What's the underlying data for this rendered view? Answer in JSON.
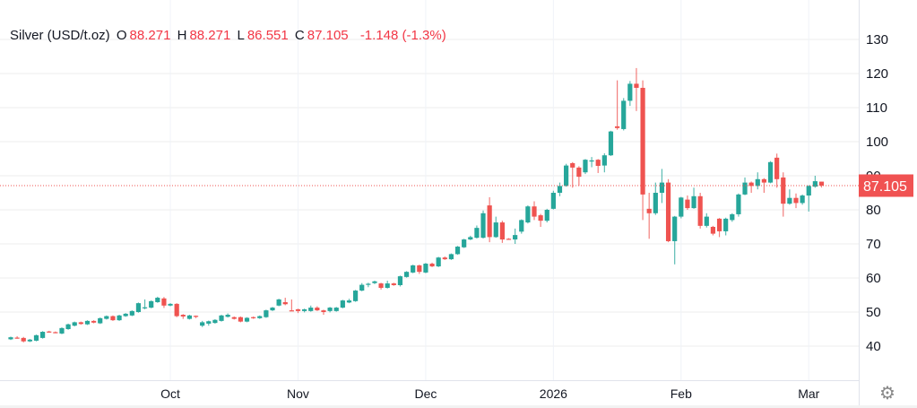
{
  "legend": {
    "symbol": "Silver (USD/t.oz)",
    "o_label": "O",
    "o": "88.271",
    "h_label": "H",
    "h": "88.271",
    "l_label": "L",
    "l": "86.551",
    "c_label": "C",
    "c": "87.105",
    "change": "-1.148 (-1.3%)"
  },
  "colors": {
    "up": "#26a69a",
    "down": "#ef5350",
    "grid": "#f0f0f3",
    "axis_text": "#131722",
    "last_price_bg": "#f05252"
  },
  "settings_icon": "gear-icon",
  "chart_data": {
    "type": "candlestick",
    "title": "Silver (USD/t.oz)",
    "xlabel": "",
    "ylabel": "",
    "ylim": [
      30,
      140
    ],
    "yticks": [
      40,
      50,
      60,
      70,
      80,
      90,
      100,
      110,
      120,
      130
    ],
    "xticks": [
      {
        "index": 25,
        "label": "Oct"
      },
      {
        "index": 45,
        "label": "Nov"
      },
      {
        "index": 65,
        "label": "Dec"
      },
      {
        "index": 85,
        "label": "2026"
      },
      {
        "index": 105,
        "label": "Feb"
      },
      {
        "index": 125,
        "label": "Mar"
      }
    ],
    "last_price": "87.105",
    "grid": true,
    "ohlc": [
      [
        42,
        42.8,
        41.8,
        42.6
      ],
      [
        42.5,
        42.9,
        42.2,
        42.4
      ],
      [
        42.4,
        42.7,
        41.1,
        41.4
      ],
      [
        41.4,
        42.1,
        41.2,
        41.9
      ],
      [
        41.6,
        43.4,
        41.4,
        43.2
      ],
      [
        42.4,
        44.4,
        42.2,
        44.2
      ],
      [
        44.3,
        44.5,
        44.0,
        44.2
      ],
      [
        44.1,
        44.3,
        43.8,
        44.0
      ],
      [
        43.7,
        45.5,
        43.5,
        45.3
      ],
      [
        45.0,
        46.6,
        44.8,
        46.4
      ],
      [
        46.0,
        47.2,
        45.8,
        47.0
      ],
      [
        47.0,
        47.2,
        46.3,
        46.5
      ],
      [
        46.4,
        47.6,
        46.2,
        47.4
      ],
      [
        47.4,
        47.6,
        46.7,
        46.9
      ],
      [
        46.7,
        48.4,
        46.5,
        48.2
      ],
      [
        48.0,
        49.0,
        47.8,
        48.8
      ],
      [
        48.8,
        49.0,
        47.4,
        47.6
      ],
      [
        47.6,
        49.2,
        47.4,
        49.0
      ],
      [
        48.8,
        49.7,
        48.6,
        49.5
      ],
      [
        49.0,
        50.5,
        48.8,
        50.3
      ],
      [
        50.0,
        52.8,
        49.8,
        52.6
      ],
      [
        51.3,
        53.7,
        50.8,
        51.4
      ],
      [
        51.3,
        53.4,
        51.1,
        53.2
      ],
      [
        52.9,
        54.5,
        52.7,
        54.2
      ],
      [
        54.0,
        54.4,
        51.2,
        51.9
      ],
      [
        51.9,
        52.6,
        51.7,
        52.4
      ],
      [
        52.4,
        52.6,
        48.5,
        48.8
      ],
      [
        49.2,
        49.4,
        48.0,
        48.7
      ],
      [
        48.0,
        49.2,
        47.8,
        49.0
      ],
      [
        48.9,
        49.0,
        48.2,
        48.7
      ],
      [
        46.0,
        47.4,
        45.6,
        47.0
      ],
      [
        46.6,
        47.5,
        46.0,
        47.3
      ],
      [
        46.8,
        47.9,
        46.6,
        47.7
      ],
      [
        47.4,
        49.2,
        47.2,
        49.0
      ],
      [
        48.6,
        49.6,
        48.4,
        49.2
      ],
      [
        48.5,
        48.7,
        47.8,
        48.0
      ],
      [
        48.5,
        48.7,
        47.0,
        47.2
      ],
      [
        47.2,
        48.5,
        47.0,
        48.3
      ],
      [
        48.5,
        48.7,
        48.0,
        48.2
      ],
      [
        48.2,
        49.0,
        48.0,
        48.8
      ],
      [
        48.5,
        50.7,
        48.3,
        50.5
      ],
      [
        50.5,
        51.5,
        50.3,
        51.3
      ],
      [
        51.9,
        53.9,
        51.7,
        53.7
      ],
      [
        52.9,
        54.2,
        52.0,
        52.3
      ],
      [
        50.5,
        53.7,
        50.3,
        50.4
      ],
      [
        50.8,
        51.0,
        49.7,
        50.3
      ],
      [
        50.3,
        51.0,
        49.9,
        50.8
      ],
      [
        50.3,
        51.9,
        50.1,
        51.3
      ],
      [
        51.3,
        51.7,
        50.3,
        50.5
      ],
      [
        50.5,
        50.7,
        49.2,
        50.0
      ],
      [
        50.3,
        51.5,
        49.9,
        51.3
      ],
      [
        50.3,
        51.5,
        50.1,
        51.3
      ],
      [
        51.3,
        53.6,
        51.1,
        53.4
      ],
      [
        52.8,
        53.9,
        52.6,
        53.4
      ],
      [
        53.2,
        56.5,
        53.0,
        56.3
      ],
      [
        56.3,
        58.5,
        56.1,
        58.0
      ],
      [
        58.0,
        58.6,
        57.3,
        58.3
      ],
      [
        58.5,
        59.2,
        58.2,
        59.0
      ],
      [
        58.4,
        58.6,
        56.6,
        57.1
      ],
      [
        57.1,
        59.2,
        56.9,
        58.4
      ],
      [
        58.4,
        58.6,
        57.7,
        57.9
      ],
      [
        57.9,
        60.7,
        57.5,
        60.5
      ],
      [
        60.3,
        62.0,
        60.1,
        61.8
      ],
      [
        61.6,
        63.9,
        61.4,
        63.7
      ],
      [
        63.7,
        63.9,
        61.2,
        61.8
      ],
      [
        61.6,
        64.4,
        61.4,
        64.2
      ],
      [
        64.2,
        64.5,
        63.2,
        63.4
      ],
      [
        63.4,
        66.2,
        63.2,
        66.0
      ],
      [
        66.0,
        66.3,
        65.3,
        65.5
      ],
      [
        65.5,
        67.2,
        65.3,
        67.0
      ],
      [
        67.0,
        69.4,
        66.8,
        69.2
      ],
      [
        69.0,
        71.5,
        68.8,
        71.3
      ],
      [
        71.3,
        72.4,
        71.1,
        72.0
      ],
      [
        71.8,
        75.4,
        71.6,
        74.7
      ],
      [
        71.8,
        79.8,
        71.6,
        79.0
      ],
      [
        81.3,
        83.7,
        70.5,
        72.0
      ],
      [
        72.0,
        78.0,
        71.8,
        76.3
      ],
      [
        76.3,
        76.8,
        70.3,
        71.3
      ],
      [
        71.5,
        71.7,
        71.2,
        71.3
      ],
      [
        71.3,
        74.5,
        70.0,
        72.6
      ],
      [
        73.6,
        77.2,
        73.0,
        77.0
      ],
      [
        76.3,
        81.3,
        76.0,
        81.0
      ],
      [
        81.0,
        82.5,
        77.0,
        78.0
      ],
      [
        78.4,
        78.8,
        75.0,
        76.8
      ],
      [
        76.8,
        80.3,
        76.3,
        80.0
      ],
      [
        80.3,
        85.6,
        80.1,
        85.0
      ],
      [
        85.0,
        88.0,
        84.0,
        87.0
      ],
      [
        87.0,
        93.5,
        86.8,
        93.0
      ],
      [
        93.7,
        94.0,
        86.5,
        92.4
      ],
      [
        92.4,
        92.8,
        87.0,
        89.7
      ],
      [
        91.0,
        94.9,
        90.5,
        94.7
      ],
      [
        94.4,
        95.5,
        92.5,
        94.5
      ],
      [
        94.7,
        94.9,
        90.8,
        92.9
      ],
      [
        93.0,
        96.6,
        91.0,
        96.0
      ],
      [
        96.0,
        103.2,
        95.8,
        103.0
      ],
      [
        104.5,
        118.0,
        103.5,
        104.0
      ],
      [
        103.7,
        112.8,
        103.3,
        112.0
      ],
      [
        112.0,
        117.8,
        110.5,
        117.0
      ],
      [
        117.0,
        121.6,
        109.0,
        115.8
      ],
      [
        115.8,
        118.0,
        77.0,
        84.5
      ],
      [
        80.3,
        85.0,
        71.5,
        79.0
      ],
      [
        79.0,
        88.0,
        78.5,
        85.0
      ],
      [
        85.0,
        92.0,
        82.0,
        88.0
      ],
      [
        88.0,
        89.0,
        70.5,
        70.8
      ],
      [
        70.8,
        78.2,
        64.0,
        78.0
      ],
      [
        78.0,
        83.8,
        77.5,
        83.6
      ],
      [
        83.0,
        84.2,
        80.0,
        80.5
      ],
      [
        80.5,
        86.5,
        80.3,
        84.0
      ],
      [
        84.0,
        85.0,
        74.5,
        75.3
      ],
      [
        75.3,
        79.0,
        74.8,
        78.0
      ],
      [
        75.0,
        75.3,
        72.5,
        73.0
      ],
      [
        77.4,
        77.6,
        72.0,
        73.7
      ],
      [
        73.7,
        77.7,
        72.5,
        77.4
      ],
      [
        77.0,
        79.0,
        76.5,
        78.7
      ],
      [
        78.7,
        84.8,
        78.0,
        84.5
      ],
      [
        84.5,
        89.5,
        84.3,
        88.0
      ],
      [
        88.0,
        88.3,
        85.0,
        87.0
      ],
      [
        87.0,
        91.0,
        86.0,
        89.0
      ],
      [
        89.0,
        89.3,
        85.0,
        88.0
      ],
      [
        88.0,
        94.3,
        87.8,
        94.0
      ],
      [
        95.3,
        96.5,
        86.5,
        89.0
      ],
      [
        89.5,
        91.0,
        78.0,
        81.8
      ],
      [
        81.8,
        86.0,
        81.5,
        83.5
      ],
      [
        83.5,
        84.8,
        80.5,
        82.0
      ],
      [
        82.0,
        84.5,
        81.5,
        84.2
      ],
      [
        84.2,
        87.2,
        79.5,
        87.0
      ],
      [
        86.8,
        90.0,
        86.5,
        88.4
      ],
      [
        88.271,
        88.271,
        86.551,
        87.105
      ]
    ]
  }
}
